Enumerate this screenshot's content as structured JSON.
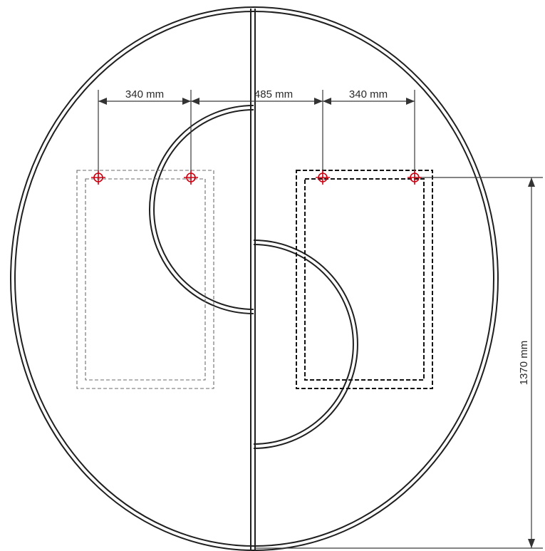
{
  "dimensions": {
    "left_spacing": "340 mm",
    "center_gap": "485 mm",
    "right_spacing": "340 mm",
    "height": "1370 mm"
  },
  "colors": {
    "outline": "#1f1f1f",
    "dimension_line": "#3a3a3a",
    "mount_point": "#cc0010"
  },
  "mount_points_count": 4
}
